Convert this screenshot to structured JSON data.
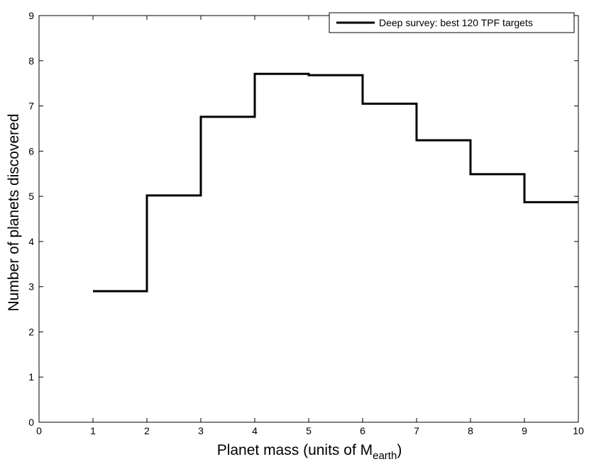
{
  "chart_data": {
    "type": "line",
    "step": "post",
    "title": "",
    "xlabel": "Planet mass (units of M",
    "xlabel_sub": "earth",
    "xlabel_close": ")",
    "ylabel": "Number of planets discovered",
    "xlim": [
      0,
      10
    ],
    "ylim": [
      0,
      9
    ],
    "xticks": [
      0,
      1,
      2,
      3,
      4,
      5,
      6,
      7,
      8,
      9,
      10
    ],
    "yticks": [
      0,
      1,
      2,
      3,
      4,
      5,
      6,
      7,
      8,
      9
    ],
    "grid": false,
    "legend_position": "top-right",
    "series": [
      {
        "name": "Deep survey: best 120 TPF targets",
        "color": "#000000",
        "x": [
          1,
          2,
          3,
          4,
          5,
          6,
          7,
          8,
          9,
          10
        ],
        "values": [
          2.9,
          5.02,
          6.76,
          7.71,
          7.68,
          7.05,
          6.24,
          5.49,
          4.87,
          4.87
        ]
      }
    ]
  }
}
